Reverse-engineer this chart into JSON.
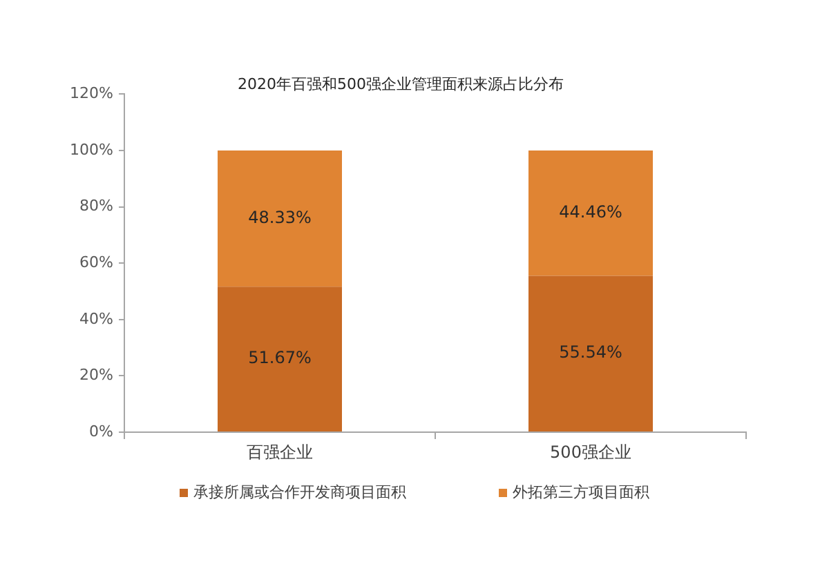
{
  "chart_data": {
    "type": "bar",
    "title": "2020年百强和500强企业管理面积来源占比分布",
    "categories": [
      "百强企业",
      "500强企业"
    ],
    "series": [
      {
        "name": "承接所属或合作开发商项目面积",
        "color": "#c86a24",
        "values": [
          51.67,
          55.54
        ],
        "value_labels": [
          "51.67%",
          "55.54%"
        ]
      },
      {
        "name": "外拓第三方项目面积",
        "color": "#e08433",
        "values": [
          48.33,
          44.46
        ],
        "value_labels": [
          "48.33%",
          "44.46%"
        ]
      }
    ],
    "stacked": true,
    "ylim": [
      0,
      120
    ],
    "yticks": [
      {
        "value": 0,
        "label": "0%"
      },
      {
        "value": 20,
        "label": "20%"
      },
      {
        "value": 40,
        "label": "40%"
      },
      {
        "value": 60,
        "label": "60%"
      },
      {
        "value": 80,
        "label": "80%"
      },
      {
        "value": 100,
        "label": "100%"
      },
      {
        "value": 120,
        "label": "120%"
      }
    ],
    "legend": "bottom"
  }
}
